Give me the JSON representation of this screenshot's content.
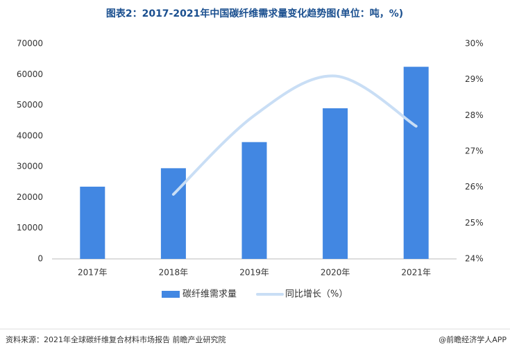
{
  "chart_data": {
    "type": "bar-line",
    "title": "图表2：2017-2021年中国碳纤维需求量变化趋势图(单位：吨，%)",
    "categories": [
      "2017年",
      "2018年",
      "2019年",
      "2020年",
      "2021年"
    ],
    "series": [
      {
        "name": "碳纤维需求量",
        "type": "bar",
        "color": "#4287e2",
        "values": [
          23500,
          29500,
          38000,
          49000,
          62500
        ]
      },
      {
        "name": "同比增长（%）",
        "type": "line",
        "axis": "y2",
        "color": "#c9def5",
        "values": [
          null,
          25.8,
          28.0,
          29.1,
          27.7
        ]
      }
    ],
    "ylim": [
      0,
      70000
    ],
    "yticks": [
      0,
      10000,
      20000,
      30000,
      40000,
      50000,
      60000,
      70000
    ],
    "y2lim": [
      24,
      30
    ],
    "y2ticks": [
      {
        "value": 24,
        "label": "24%"
      },
      {
        "value": 25,
        "label": "25%"
      },
      {
        "value": 26,
        "label": "26%"
      },
      {
        "value": 27,
        "label": "27%"
      },
      {
        "value": 28,
        "label": "28%"
      },
      {
        "value": 29,
        "label": "29%"
      },
      {
        "value": 30,
        "label": "30%"
      }
    ],
    "legend": "bottom",
    "source": "资料来源：2021年全球碳纤维复合材料市场报告 前瞻产业研究院",
    "brand": "@前瞻经济学人APP"
  }
}
